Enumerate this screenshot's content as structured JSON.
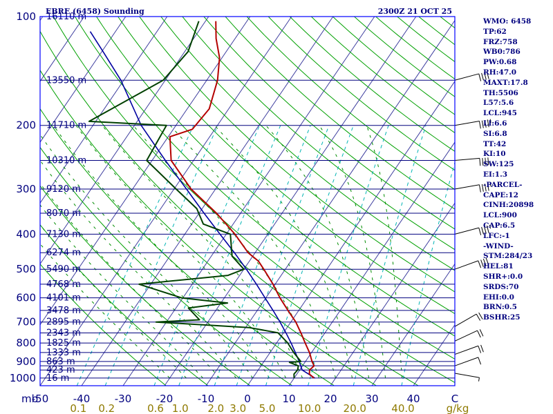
{
  "header": {
    "station": "EBRE (6458) Sounding",
    "time": "2300Z 21 OCT 25"
  },
  "colors": {
    "frame": "#0000ff",
    "isobar": "#00007f",
    "text": "#00007f",
    "isotherm": "#3f3f9f",
    "dry_adiabat": "#00a000",
    "moist_adiabat": "#008c00",
    "mixing_ratio": "#00b4b4",
    "temperature": "#b40000",
    "dewpoint": "#004000",
    "parcel": "#0000a0",
    "mixing_label": "#8f7a00",
    "wind": "#000000"
  },
  "indices": [
    "WMO: 6458",
    "TP:62",
    "FRZ:758",
    "WB0:786",
    "PW:0.68",
    "RH:47.0",
    "MAXT:17.8",
    "TH:5506",
    "L57:5.6",
    "LCL:945",
    "LI:6.6",
    "SI:6.8",
    "TT:42",
    "KI:10",
    "SW:125",
    "EI:1.3",
    "-PARCEL-",
    "CAPE:12",
    "CINH:20898",
    "LCL:900",
    "CAP:6.5",
    "LFC:-1",
    "-WIND-",
    "STM:284/23",
    "HEL:81",
    "SHR+:0.0",
    "SRDS:70",
    "EHI:0.0",
    "BRN:0.5",
    "BSHR:25"
  ],
  "axis": {
    "unit_mb": "mb",
    "unit_gkg": "g/kg",
    "pressure_labels": [
      "100",
      "200",
      "300",
      "400",
      "500",
      "600",
      "700",
      "800",
      "900",
      "1000"
    ],
    "height_labels": [
      "16110 m",
      "13550 m",
      "11710 m",
      "10310 m",
      "9120 m",
      "8070 m",
      "7130 m",
      "6274 m",
      "5490 m",
      "4768 m",
      "4101 m",
      "3478 m",
      "2895 m",
      "2343 m",
      "1825 m",
      "1333 m",
      "863 m",
      "423 m",
      "16 m"
    ],
    "temp_labels": [
      "-50",
      "-40",
      "-30",
      "-20",
      "-10",
      "0",
      "10",
      "20",
      "30",
      "40",
      "C"
    ],
    "mixing_labels": [
      "0.1",
      "0.2",
      "0.6",
      "1.0",
      "2.0",
      "3.0",
      "5.0",
      "10.0",
      "20.0",
      "40.0"
    ]
  },
  "chart_data": {
    "type": "skew-t",
    "title": "EBRE (6458) Sounding",
    "valid_time": "2300Z 21 OCT 25",
    "p_range_mb": [
      100,
      1050
    ],
    "t_range_c_at_bottom": [
      -50,
      50
    ],
    "isobars_mb": [
      100,
      150,
      200,
      250,
      300,
      350,
      400,
      450,
      500,
      550,
      600,
      650,
      700,
      750,
      800,
      850,
      900,
      925,
      950,
      1000
    ],
    "height_levels": [
      {
        "p": 100,
        "z": "16110 m"
      },
      {
        "p": 150,
        "z": "13550 m"
      },
      {
        "p": 200,
        "z": "11710 m"
      },
      {
        "p": 250,
        "z": "10310 m"
      },
      {
        "p": 300,
        "z": "9120 m"
      },
      {
        "p": 350,
        "z": "8070 m"
      },
      {
        "p": 400,
        "z": "7130 m"
      },
      {
        "p": 450,
        "z": "6274 m"
      },
      {
        "p": 500,
        "z": "5490 m"
      },
      {
        "p": 550,
        "z": "4768 m"
      },
      {
        "p": 600,
        "z": "4101 m"
      },
      {
        "p": 650,
        "z": "3478 m"
      },
      {
        "p": 700,
        "z": "2895 m"
      },
      {
        "p": 750,
        "z": "2343 m"
      },
      {
        "p": 800,
        "z": "1825 m"
      },
      {
        "p": 850,
        "z": "1333 m"
      },
      {
        "p": 900,
        "z": "863 m"
      },
      {
        "p": 950,
        "z": "423 m"
      },
      {
        "p": 1000,
        "z": "16 m"
      }
    ],
    "isotherms_c": [
      -150,
      -140,
      -130,
      -120,
      -110,
      -100,
      -90,
      -80,
      -70,
      -60,
      -50,
      -40,
      -30,
      -20,
      -10,
      0,
      10,
      20,
      30,
      40,
      50
    ],
    "dry_adiabats_theta_k": [
      250,
      260,
      270,
      280,
      290,
      300,
      310,
      320,
      330,
      340,
      350,
      360,
      370,
      380,
      390,
      400,
      410,
      420,
      430,
      440,
      450,
      460,
      470,
      480,
      490,
      500
    ],
    "moist_adiabats_c": [
      -20,
      -16,
      -12,
      -8,
      -4,
      0,
      4,
      8,
      12,
      16,
      20,
      24,
      28,
      32,
      36
    ],
    "mixing_ratio_lines_gkg": [
      0.1,
      0.2,
      0.6,
      1.0,
      2.0,
      3.0,
      5.0,
      10.0,
      20.0,
      40.0
    ],
    "temperature": [
      {
        "p": 1000,
        "t": 14.8
      },
      {
        "p": 975,
        "t": 13.0
      },
      {
        "p": 950,
        "t": 12.4
      },
      {
        "p": 925,
        "t": 12.8
      },
      {
        "p": 900,
        "t": 11.6
      },
      {
        "p": 850,
        "t": 9.5
      },
      {
        "p": 800,
        "t": 6.9
      },
      {
        "p": 750,
        "t": 4.2
      },
      {
        "p": 700,
        "t": 1.2
      },
      {
        "p": 650,
        "t": -2.6
      },
      {
        "p": 600,
        "t": -6.6
      },
      {
        "p": 550,
        "t": -10.5
      },
      {
        "p": 500,
        "t": -15.2
      },
      {
        "p": 475,
        "t": -17.8
      },
      {
        "p": 450,
        "t": -21.7
      },
      {
        "p": 400,
        "t": -27.9
      },
      {
        "p": 350,
        "t": -35.8
      },
      {
        "p": 300,
        "t": -45.9
      },
      {
        "p": 250,
        "t": -55.4
      },
      {
        "p": 215,
        "t": -59.6
      },
      {
        "p": 205,
        "t": -55.4
      },
      {
        "p": 180,
        "t": -54.7
      },
      {
        "p": 150,
        "t": -57.4
      },
      {
        "p": 130,
        "t": -60.6
      },
      {
        "p": 115,
        "t": -64.6
      },
      {
        "p": 103,
        "t": -67.5
      }
    ],
    "dewpoint": [
      {
        "p": 1000,
        "t": 10.0
      },
      {
        "p": 975,
        "t": 9.3
      },
      {
        "p": 950,
        "t": 9.5
      },
      {
        "p": 925,
        "t": 9.0
      },
      {
        "p": 905,
        "t": 6.3
      },
      {
        "p": 900,
        "t": 8.9
      },
      {
        "p": 850,
        "t": 5.7
      },
      {
        "p": 800,
        "t": 2.7
      },
      {
        "p": 750,
        "t": -1.3
      },
      {
        "p": 725,
        "t": -9.2
      },
      {
        "p": 700,
        "t": -32.5
      },
      {
        "p": 690,
        "t": -22.4
      },
      {
        "p": 640,
        "t": -27.0
      },
      {
        "p": 620,
        "t": -18.4
      },
      {
        "p": 600,
        "t": -30.3
      },
      {
        "p": 550,
        "t": -42.8
      },
      {
        "p": 520,
        "t": -22.8
      },
      {
        "p": 500,
        "t": -20.0
      },
      {
        "p": 460,
        "t": -25.0
      },
      {
        "p": 400,
        "t": -29.0
      },
      {
        "p": 375,
        "t": -37.2
      },
      {
        "p": 340,
        "t": -41.3
      },
      {
        "p": 300,
        "t": -49.5
      },
      {
        "p": 250,
        "t": -61.3
      },
      {
        "p": 200,
        "t": -62.3
      },
      {
        "p": 195,
        "t": -81.6
      },
      {
        "p": 150,
        "t": -70.5
      },
      {
        "p": 125,
        "t": -69.2
      },
      {
        "p": 103,
        "t": -71.6
      }
    ],
    "parcel": [
      {
        "p": 1000,
        "t": 15.0
      },
      {
        "p": 950,
        "t": 10.6
      },
      {
        "p": 900,
        "t": 8.5
      },
      {
        "p": 850,
        "t": 6.1
      },
      {
        "p": 800,
        "t": 3.5
      },
      {
        "p": 750,
        "t": 0.6
      },
      {
        "p": 700,
        "t": -2.6
      },
      {
        "p": 650,
        "t": -6.2
      },
      {
        "p": 600,
        "t": -10.2
      },
      {
        "p": 550,
        "t": -14.5
      },
      {
        "p": 500,
        "t": -19.4
      },
      {
        "p": 450,
        "t": -25.0
      },
      {
        "p": 400,
        "t": -31.5
      },
      {
        "p": 350,
        "t": -38.8
      },
      {
        "p": 300,
        "t": -47.0
      },
      {
        "p": 250,
        "t": -56.8
      },
      {
        "p": 200,
        "t": -68.4
      },
      {
        "p": 150,
        "t": -80.7
      },
      {
        "p": 125,
        "t": -89.7
      },
      {
        "p": 110,
        "t": -96.1
      }
    ],
    "wind_barbs": [
      {
        "p": 970,
        "dir": 280,
        "kt": 5
      },
      {
        "p": 925,
        "dir": 250,
        "kt": 10
      },
      {
        "p": 860,
        "dir": 250,
        "kt": 20
      },
      {
        "p": 790,
        "dir": 245,
        "kt": 20
      },
      {
        "p": 720,
        "dir": 240,
        "kt": 20
      },
      {
        "p": 500,
        "dir": 250,
        "kt": 40
      },
      {
        "p": 400,
        "dir": 255,
        "kt": 45
      },
      {
        "p": 300,
        "dir": 260,
        "kt": 45
      },
      {
        "p": 250,
        "dir": 265,
        "kt": 40
      },
      {
        "p": 200,
        "dir": 260,
        "kt": 45
      },
      {
        "p": 150,
        "dir": 255,
        "kt": 40
      }
    ]
  }
}
